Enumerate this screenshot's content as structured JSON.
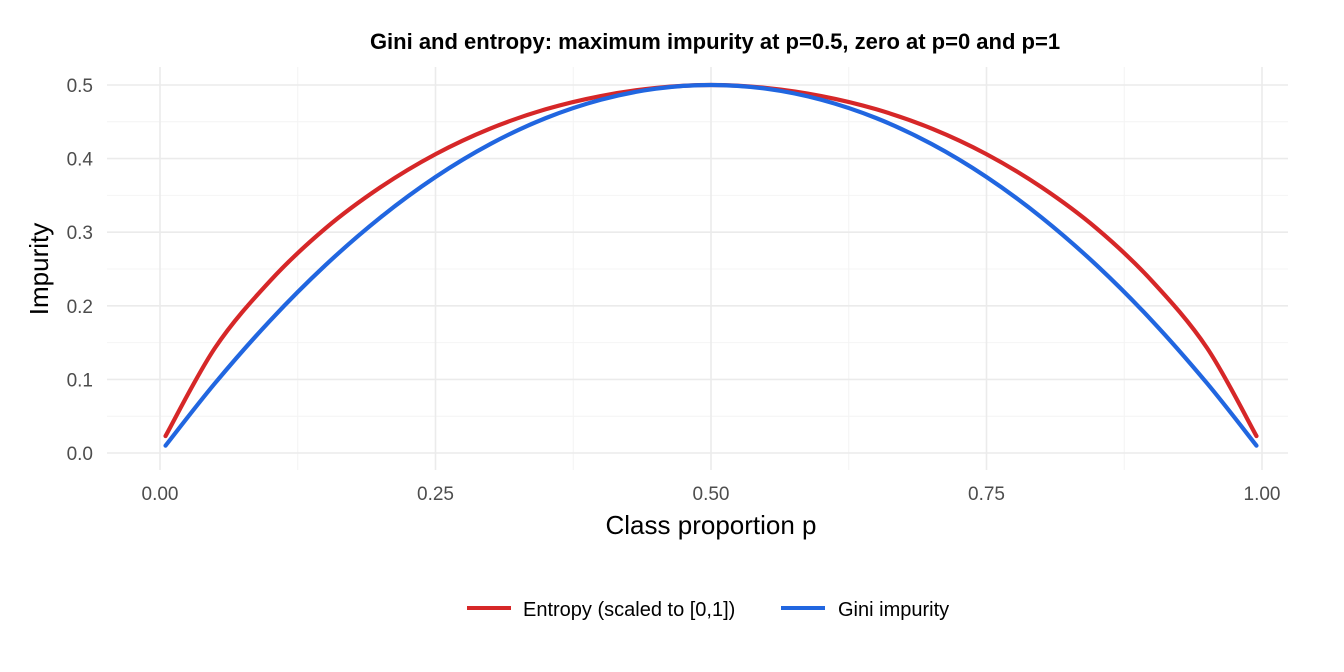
{
  "chart_data": {
    "type": "line",
    "title": "Gini and entropy: maximum impurity at p=0.5, zero at p=0",
    "title_full": "Gini and entropy: maximum impurity at p=0.5, zero at p=0 and p=1",
    "xlabel": "Class proportion p",
    "ylabel": "Impurity",
    "xlim": [
      0,
      1
    ],
    "ylim": [
      0,
      0.5
    ],
    "x_ticks": [
      "0.00",
      "0.25",
      "0.50",
      "0.75",
      "1.00"
    ],
    "y_ticks": [
      "0.0",
      "0.1",
      "0.2",
      "0.3",
      "0.4",
      "0.5"
    ],
    "grid": true,
    "legend_position": "bottom",
    "x": [
      0.005,
      0.05,
      0.1,
      0.15,
      0.2,
      0.25,
      0.3,
      0.35,
      0.4,
      0.45,
      0.5,
      0.55,
      0.6,
      0.65,
      0.7,
      0.75,
      0.8,
      0.85,
      0.9,
      0.95,
      0.995
    ],
    "series": [
      {
        "name": "Entropy (scaled to [0,1])",
        "color": "#d62728",
        "values": [
          0.023,
          0.143,
          0.234,
          0.305,
          0.361,
          0.406,
          0.441,
          0.467,
          0.485,
          0.496,
          0.5,
          0.496,
          0.485,
          0.467,
          0.441,
          0.406,
          0.361,
          0.305,
          0.234,
          0.143,
          0.023
        ]
      },
      {
        "name": "Gini impurity",
        "color": "#2166e0",
        "values": [
          0.01,
          0.095,
          0.18,
          0.255,
          0.32,
          0.375,
          0.42,
          0.455,
          0.48,
          0.495,
          0.5,
          0.495,
          0.48,
          0.455,
          0.42,
          0.375,
          0.32,
          0.255,
          0.18,
          0.095,
          0.01
        ]
      }
    ]
  }
}
